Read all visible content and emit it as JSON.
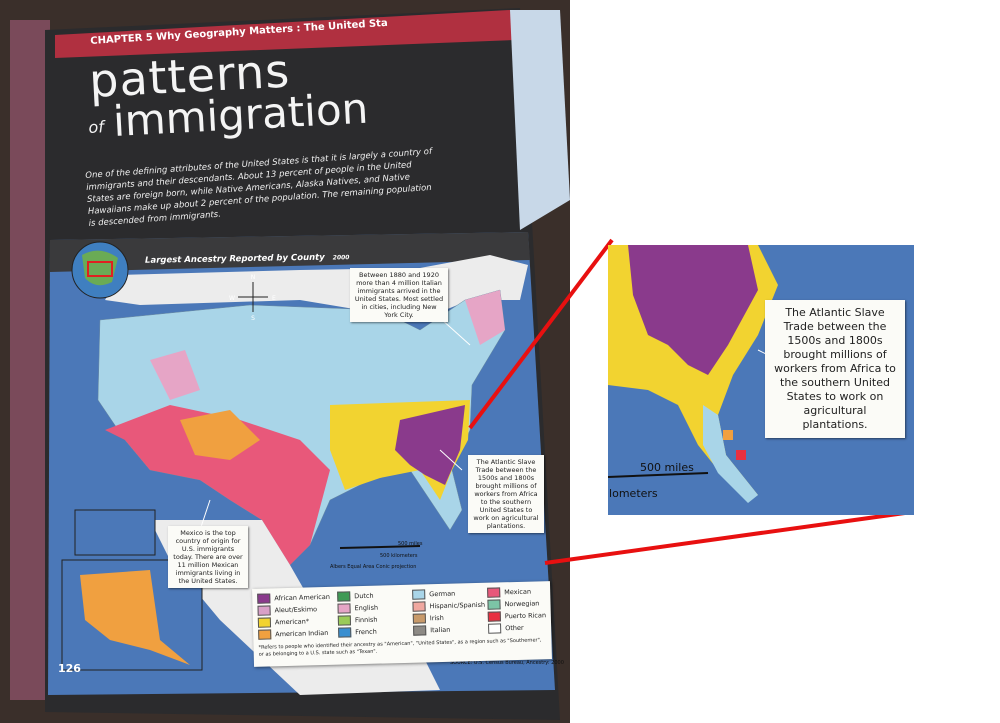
{
  "header": {
    "chapter": "CHAPTER 5  Why Geography Matters : The United Sta",
    "title_line1": "patterns",
    "title_of": "of",
    "title_line2": "immigration",
    "intro": "One of the defining attributes of the United States is that it is largely a country of immigrants and their descendants. About 13 percent of people in the United States are foreign born, while Native Americans, Alaska Natives, and Native Hawaiians make up about 2 percent of the population. The remaining population is descended from immigrants."
  },
  "map": {
    "title": "Largest Ancestry Reported by County",
    "year": "2000",
    "compass": {
      "n": "N",
      "s": "S",
      "e": "E",
      "w": "W"
    },
    "callout_italian": "Between 1880 and 1920 more than 4 million Italian immigrants arrived in the United States. Most settled in cities, including New York City.",
    "callout_slave": "The Atlantic Slave Trade between the 1500s and 1800s brought millions of workers from Africa to the southern United States to work on agricultural plantations.",
    "callout_mexico": "Mexico is the top country of origin for U.S. immigrants today. There are over 11 million Mexican immigrants living in the United States.",
    "scale_miles": "500 miles",
    "scale_km": "500 kilometers",
    "projection": "Albers Equal Area Conic projection",
    "legend": {
      "items": [
        {
          "label": "African American",
          "color": "#8a3a8c"
        },
        {
          "label": "Aleut/Eskimo",
          "color": "#d9a0c8"
        },
        {
          "label": "American*",
          "color": "#f2d330"
        },
        {
          "label": "American Indian",
          "color": "#f0a040"
        },
        {
          "label": "Dutch",
          "color": "#3f9a55"
        },
        {
          "label": "English",
          "color": "#e6a5c6"
        },
        {
          "label": "Finnish",
          "color": "#9acb58"
        },
        {
          "label": "French",
          "color": "#3a8fd0"
        },
        {
          "label": "German",
          "color": "#a9d5e8"
        },
        {
          "label": "Hispanic/Spanish",
          "color": "#f0a8a0"
        },
        {
          "label": "Irish",
          "color": "#c89a6a"
        },
        {
          "label": "Italian",
          "color": "#8d8a85"
        },
        {
          "label": "Mexican",
          "color": "#e8587a"
        },
        {
          "label": "Norwegian",
          "color": "#7cc4a6"
        },
        {
          "label": "Puerto Rican",
          "color": "#e83040"
        },
        {
          "label": "Other",
          "color": "#ffffff"
        }
      ],
      "note": "*Refers to people who identified their ancestry as \"American\", \"United States\", as a region such as \"Southerner\", or as belonging to a U.S. state such as \"Texan\"."
    },
    "page_number": "126",
    "source": "SOURCE: U.S. Census Bureau, Ancestry: 2000"
  },
  "inset": {
    "callout": "The Atlantic Slave Trade between the 1500s and 1800s brought millions of workers from Africa to the southern United States to work on agricultural plantations.",
    "scale_miles": "500 miles",
    "scale_km": "ilometers"
  }
}
